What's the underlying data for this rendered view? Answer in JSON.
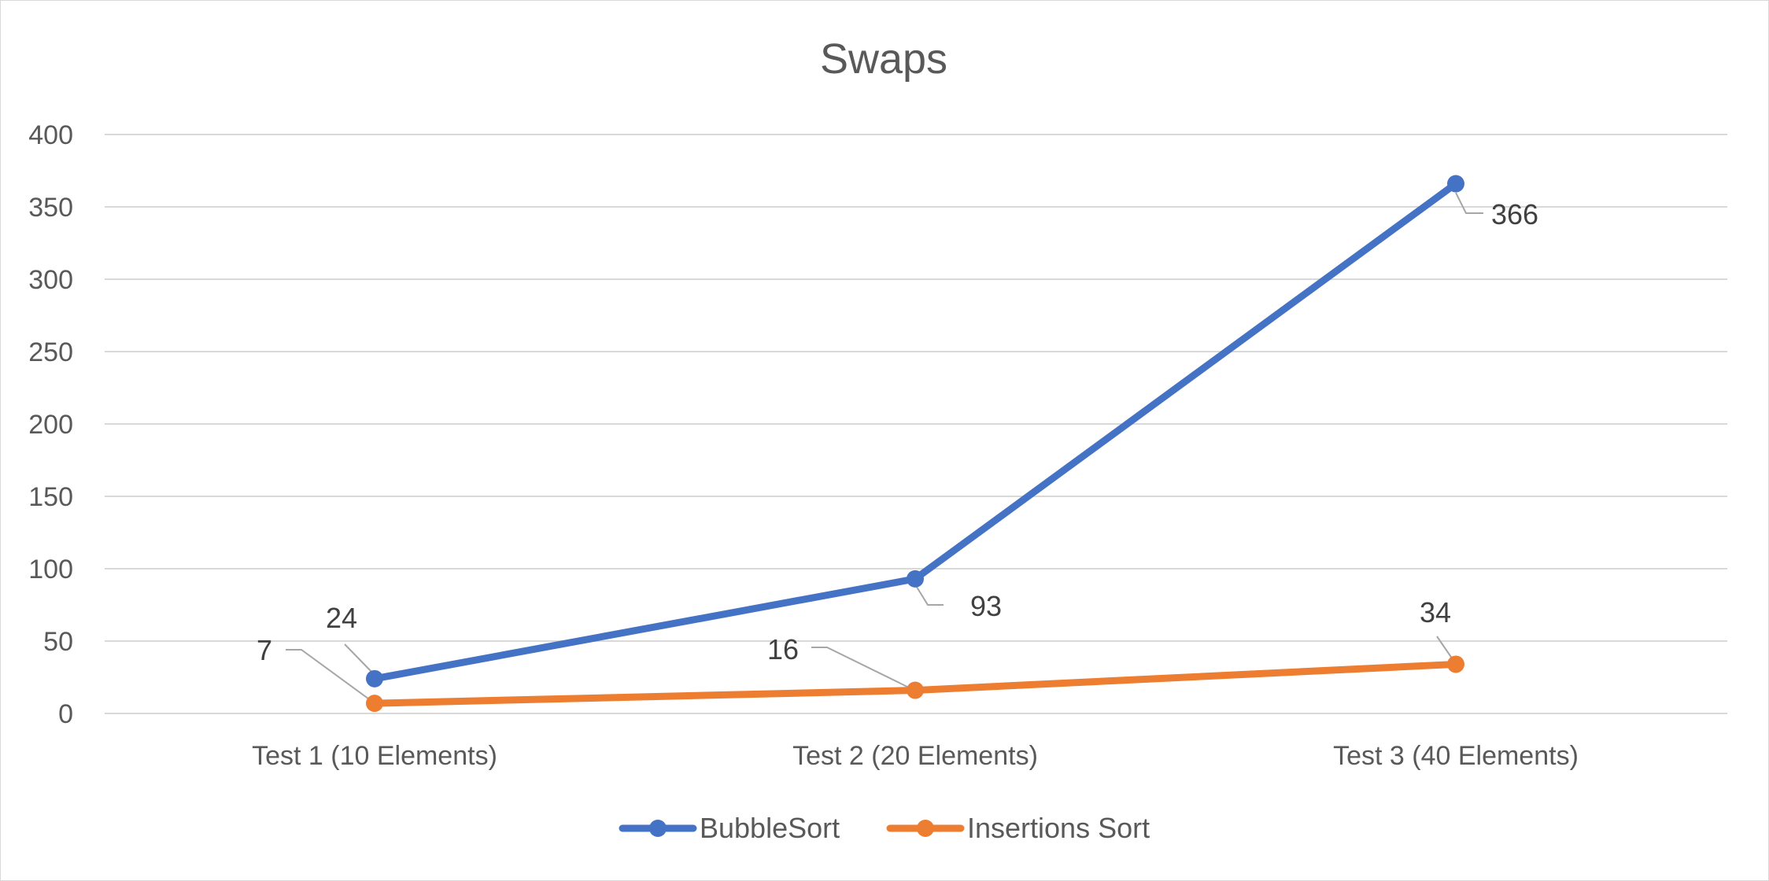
{
  "chart_data": {
    "type": "line",
    "title": "Swaps",
    "categories": [
      "Test 1 (10 Elements)",
      "Test 2 (20 Elements)",
      "Test 3 (40 Elements)"
    ],
    "ylim": [
      0,
      400
    ],
    "yticks": [
      0,
      50,
      100,
      150,
      200,
      250,
      300,
      350,
      400
    ],
    "grid": true,
    "legend_position": "bottom",
    "series": [
      {
        "name": "BubbleSort",
        "color": "#4472C4",
        "values": [
          24,
          93,
          366
        ],
        "labels": [
          "24",
          "93",
          "366"
        ]
      },
      {
        "name": "Insertions Sort",
        "color": "#ED7D31",
        "values": [
          7,
          16,
          34
        ],
        "labels": [
          "7",
          "16",
          "34"
        ]
      }
    ]
  }
}
